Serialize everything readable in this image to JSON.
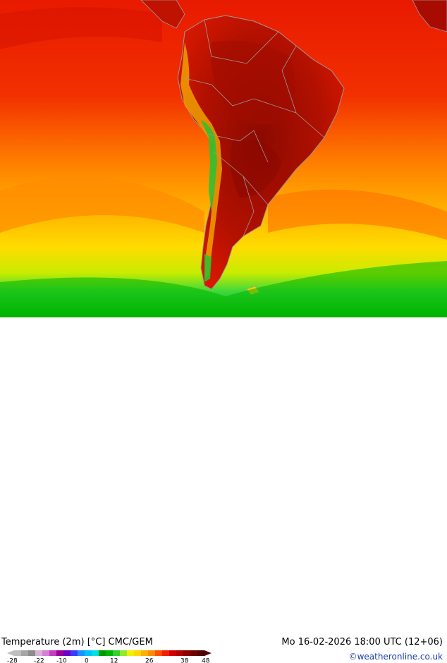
{
  "title": "Temperature (2m) [°C] CMC/GEM",
  "datetime": "Mo 16-02-2026 18:00 UTC (12+06)",
  "credit": "©weatheronline.co.uk",
  "legend": {
    "ticks": [
      "-28",
      "-22",
      "-10",
      "0",
      "12",
      "26",
      "38",
      "48"
    ],
    "colors": [
      "#bfbfbf",
      "#a6a6a6",
      "#8c8c8c",
      "#d6b3d6",
      "#d580d5",
      "#c040c0",
      "#9b009b",
      "#6a00c8",
      "#3c3cff",
      "#1e90ff",
      "#00c0ff",
      "#00e0e0",
      "#009a00",
      "#00b400",
      "#30d030",
      "#90e830",
      "#f0f000",
      "#ffd700",
      "#ffb000",
      "#ff8c00",
      "#ff5000",
      "#f02000",
      "#d00000",
      "#b00000",
      "#8c0000",
      "#6e0000",
      "#500000"
    ]
  },
  "map": {
    "region": "South America"
  }
}
